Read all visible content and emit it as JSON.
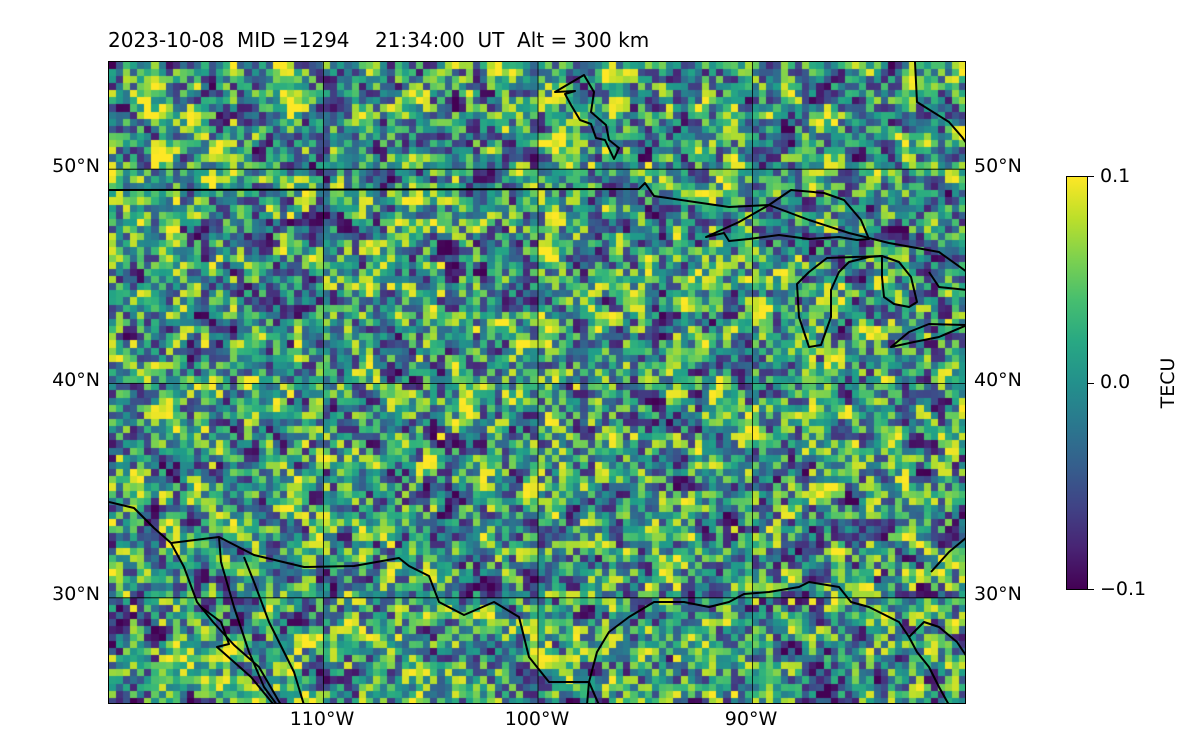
{
  "title": "2023-10-08  MID =1294    21:34:00  UT  Alt = 300 km",
  "map": {
    "extent": {
      "lon_min": -120,
      "lon_max": -80,
      "lat_min": 25,
      "lat_max": 55
    },
    "grid": "on",
    "lat_labels": [
      {
        "value": 50,
        "text": "50°N"
      },
      {
        "value": 40,
        "text": "40°N"
      },
      {
        "value": 30,
        "text": "30°N"
      }
    ],
    "lon_labels": [
      {
        "value": -110,
        "text": "110°W"
      },
      {
        "value": -100,
        "text": "100°W"
      },
      {
        "value": -90,
        "text": "90°W"
      }
    ],
    "colormap": "viridis",
    "outline_color": "#000000"
  },
  "colorbar": {
    "label": "TECU",
    "min": -0.1,
    "max": 0.1,
    "ticks": [
      {
        "value": 0.1,
        "text": "0.1"
      },
      {
        "value": 0.0,
        "text": "0.0"
      },
      {
        "value": -0.1,
        "text": "−0.1"
      }
    ]
  }
}
